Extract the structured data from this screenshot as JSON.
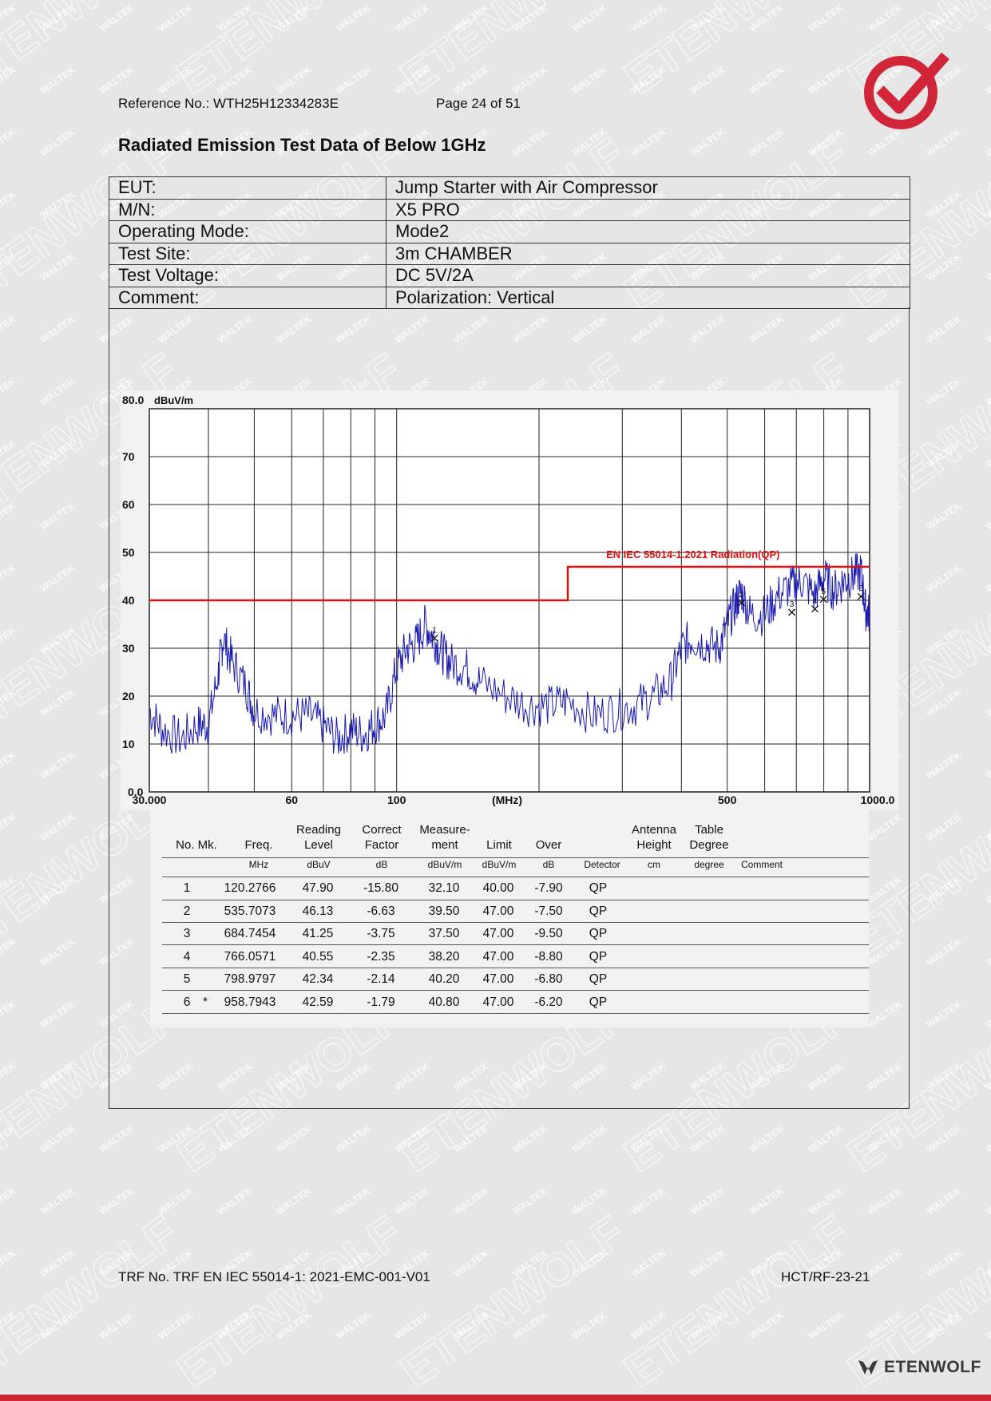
{
  "header": {
    "reference": "Reference No.: WTH25H12334283E",
    "page": "Page 24 of 51"
  },
  "title": "Radiated Emission Test Data of Below 1GHz",
  "info_rows": [
    {
      "label": "EUT:",
      "value": "Jump Starter with Air Compressor"
    },
    {
      "label": "M/N:",
      "value": "X5 PRO"
    },
    {
      "label": "Operating Mode:",
      "value": "Mode2"
    },
    {
      "label": "Test Site:",
      "value": "3m CHAMBER"
    },
    {
      "label": "Test Voltage:",
      "value": "DC 5V/2A"
    },
    {
      "label": "Comment:",
      "value": "Polarization: Vertical"
    }
  ],
  "chart_data": {
    "type": "line",
    "ylabel": "dBuV/m",
    "xlabel": "(MHz)",
    "x_scale": "log",
    "xlim": [
      30,
      1000
    ],
    "ylim": [
      0,
      80
    ],
    "y_tick_labels": [
      "80.0",
      "70",
      "60",
      "50",
      "40",
      "30",
      "20",
      "10",
      "0.0"
    ],
    "x_tick_labels": [
      "30.000",
      "60",
      "100",
      "500",
      "1000.0"
    ],
    "limit_label": "EN IEC 55014-1.2021 Radiation(QP)",
    "limit_line": [
      {
        "x": 30,
        "y": 40
      },
      {
        "x": 230,
        "y": 40
      },
      {
        "x": 230,
        "y": 47
      },
      {
        "x": 1000,
        "y": 47
      }
    ],
    "trace_points": [
      [
        30,
        17
      ],
      [
        32,
        13
      ],
      [
        35,
        11
      ],
      [
        38,
        14
      ],
      [
        40,
        14
      ],
      [
        42,
        25
      ],
      [
        43,
        32
      ],
      [
        45,
        27
      ],
      [
        48,
        22
      ],
      [
        50,
        17
      ],
      [
        55,
        16
      ],
      [
        60,
        16
      ],
      [
        65,
        16
      ],
      [
        70,
        14
      ],
      [
        75,
        11
      ],
      [
        80,
        13
      ],
      [
        85,
        12
      ],
      [
        90,
        14
      ],
      [
        95,
        16
      ],
      [
        100,
        26
      ],
      [
        105,
        30
      ],
      [
        110,
        31
      ],
      [
        115,
        35
      ],
      [
        120,
        32
      ],
      [
        125,
        29
      ],
      [
        130,
        27
      ],
      [
        140,
        26
      ],
      [
        150,
        23
      ],
      [
        170,
        20
      ],
      [
        190,
        18
      ],
      [
        210,
        18
      ],
      [
        230,
        19
      ],
      [
        260,
        16
      ],
      [
        290,
        17
      ],
      [
        320,
        18
      ],
      [
        350,
        20
      ],
      [
        380,
        23
      ],
      [
        400,
        30
      ],
      [
        420,
        32
      ],
      [
        450,
        31
      ],
      [
        480,
        30
      ],
      [
        500,
        35
      ],
      [
        520,
        39
      ],
      [
        535,
        42
      ],
      [
        560,
        37
      ],
      [
        600,
        37
      ],
      [
        640,
        41
      ],
      [
        684,
        43
      ],
      [
        720,
        44
      ],
      [
        766,
        41
      ],
      [
        799,
        45
      ],
      [
        840,
        42
      ],
      [
        880,
        44
      ],
      [
        920,
        45
      ],
      [
        959,
        46
      ],
      [
        980,
        38
      ],
      [
        1000,
        37
      ]
    ],
    "trace_color": "#1a1ab0",
    "limit_color": "#e01010",
    "markers": [
      {
        "label": "1",
        "x": 120.2766,
        "y": 32.1
      },
      {
        "label": "2",
        "x": 535.7073,
        "y": 39.5
      },
      {
        "label": "3",
        "x": 684.7454,
        "y": 37.5
      },
      {
        "label": "4",
        "x": 766.0571,
        "y": 38.2
      },
      {
        "label": "5",
        "x": 798.9797,
        "y": 40.2
      },
      {
        "label": "6",
        "x": 958.7943,
        "y": 40.8
      }
    ]
  },
  "data_table": {
    "headers": [
      {
        "key": "no",
        "line1": "",
        "line2": "No. Mk."
      },
      {
        "key": "freq",
        "line1": "",
        "line2": "Freq."
      },
      {
        "key": "reading",
        "line1": "Reading",
        "line2": "Level"
      },
      {
        "key": "correct",
        "line1": "Correct",
        "line2": "Factor"
      },
      {
        "key": "measure",
        "line1": "Measure-",
        "line2": "ment"
      },
      {
        "key": "limit",
        "line1": "",
        "line2": "Limit"
      },
      {
        "key": "over",
        "line1": "",
        "line2": "Over"
      },
      {
        "key": "antenna",
        "line1": "Antenna",
        "line2": "Height"
      },
      {
        "key": "table",
        "line1": "Table",
        "line2": "Degree"
      }
    ],
    "units": [
      "MHz",
      "dBuV",
      "dB",
      "dBuV/m",
      "dBuV/m",
      "dB",
      "Detector",
      "cm",
      "degree",
      "Comment"
    ],
    "rows": [
      {
        "no": "1",
        "mk": "",
        "freq": "120.2766",
        "reading": "47.90",
        "correct": "-15.80",
        "measure": "32.10",
        "limit": "40.00",
        "over": "-7.90",
        "detector": "QP"
      },
      {
        "no": "2",
        "mk": "",
        "freq": "535.7073",
        "reading": "46.13",
        "correct": "-6.63",
        "measure": "39.50",
        "limit": "47.00",
        "over": "-7.50",
        "detector": "QP"
      },
      {
        "no": "3",
        "mk": "",
        "freq": "684.7454",
        "reading": "41.25",
        "correct": "-3.75",
        "measure": "37.50",
        "limit": "47.00",
        "over": "-9.50",
        "detector": "QP"
      },
      {
        "no": "4",
        "mk": "",
        "freq": "766.0571",
        "reading": "40.55",
        "correct": "-2.35",
        "measure": "38.20",
        "limit": "47.00",
        "over": "-8.80",
        "detector": "QP"
      },
      {
        "no": "5",
        "mk": "",
        "freq": "798.9797",
        "reading": "42.34",
        "correct": "-2.14",
        "measure": "40.20",
        "limit": "47.00",
        "over": "-6.80",
        "detector": "QP"
      },
      {
        "no": "6",
        "mk": "*",
        "freq": "958.7943",
        "reading": "42.59",
        "correct": "-1.79",
        "measure": "40.80",
        "limit": "47.00",
        "over": "-6.20",
        "detector": "QP"
      }
    ]
  },
  "footer": {
    "trf": "TRF No. TRF EN IEC 55014-1: 2021-EMC-001-V01",
    "code": "HCT/RF-23-21"
  },
  "brand": {
    "name": "ETENWOLF",
    "watermark_words": [
      "WALTEK",
      "ETENWOLF"
    ],
    "accent": "#d1263a"
  }
}
